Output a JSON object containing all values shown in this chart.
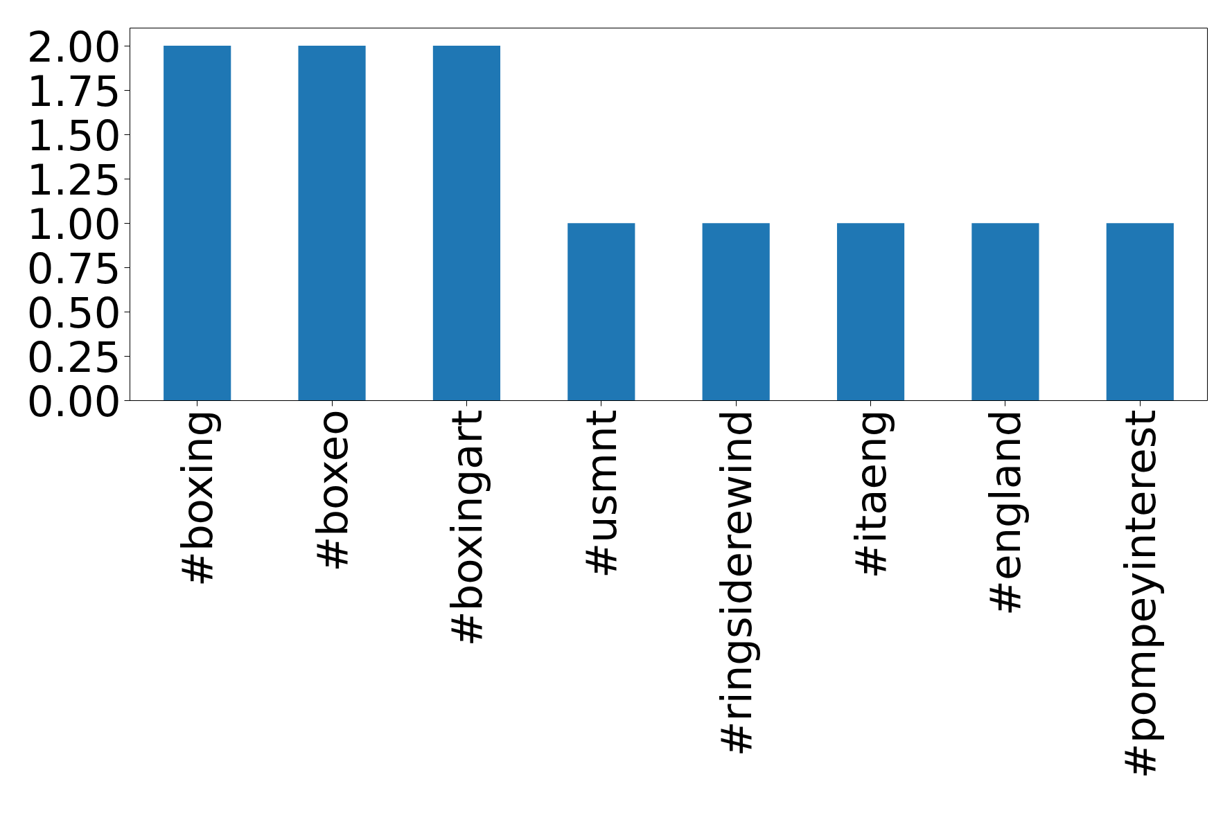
{
  "chart_data": {
    "type": "bar",
    "categories": [
      "#boxing",
      "#boxeo",
      "#boxingart",
      "#usmnt",
      "#ringsiderewind",
      "#itaeng",
      "#england",
      "#pompeyinterest"
    ],
    "values": [
      2,
      2,
      2,
      1,
      1,
      1,
      1,
      1
    ],
    "color": "#1f77b4",
    "ylim": [
      0,
      2.1
    ],
    "yticks": [
      {
        "value": 0,
        "label": "0.00"
      },
      {
        "value": 0.25,
        "label": "0.25"
      },
      {
        "value": 0.5,
        "label": "0.50"
      },
      {
        "value": 0.75,
        "label": "0.75"
      },
      {
        "value": 1,
        "label": "1.00"
      },
      {
        "value": 1.25,
        "label": "1.25"
      },
      {
        "value": 1.5,
        "label": "1.50"
      },
      {
        "value": 1.75,
        "label": "1.75"
      },
      {
        "value": 2,
        "label": "2.00"
      }
    ],
    "grid": false
  }
}
